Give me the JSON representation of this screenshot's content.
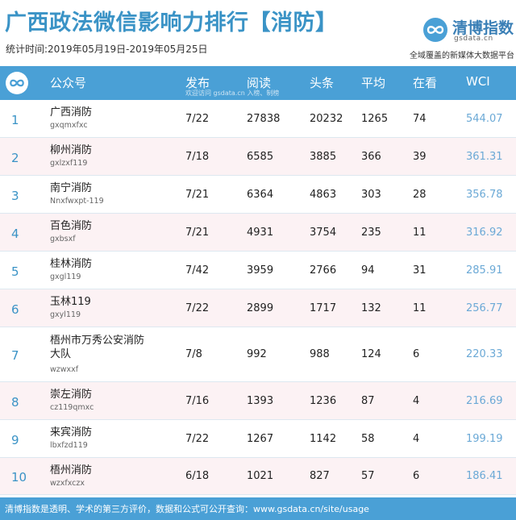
{
  "header": {
    "title": "广西政法微信影响力排行【消防】",
    "period": "统计时间:2019年05月19日-2019年05月25日",
    "logo_text": "清博指数",
    "logo_sub": "gsdata.cn",
    "tagline": "全域覆盖的新媒体大数据平台"
  },
  "table": {
    "columns": [
      "公众号",
      "发布",
      "阅读",
      "头条",
      "平均",
      "在看",
      "WCI"
    ],
    "watermark": "欢迎访问 gsdata.cn 入榜、制榜",
    "rows": [
      {
        "rank": "1",
        "name": "广西消防",
        "account": "gxqmxfxc",
        "publish": "7/22",
        "read": "27838",
        "headline": "20232",
        "avg": "1265",
        "watch": "74",
        "wci": "544.07"
      },
      {
        "rank": "2",
        "name": "柳州消防",
        "account": "gxlzxf119",
        "publish": "7/18",
        "read": "6585",
        "headline": "3885",
        "avg": "366",
        "watch": "39",
        "wci": "361.31"
      },
      {
        "rank": "3",
        "name": "南宁消防",
        "account": "Nnxfwxpt-119",
        "publish": "7/21",
        "read": "6364",
        "headline": "4863",
        "avg": "303",
        "watch": "28",
        "wci": "356.78"
      },
      {
        "rank": "4",
        "name": "百色消防",
        "account": "gxbsxf",
        "publish": "7/21",
        "read": "4931",
        "headline": "3754",
        "avg": "235",
        "watch": "11",
        "wci": "316.92"
      },
      {
        "rank": "5",
        "name": "桂林消防",
        "account": "gxgl119",
        "publish": "7/42",
        "read": "3959",
        "headline": "2766",
        "avg": "94",
        "watch": "31",
        "wci": "285.91"
      },
      {
        "rank": "6",
        "name": "玉林119",
        "account": "gxyl119",
        "publish": "7/22",
        "read": "2899",
        "headline": "1717",
        "avg": "132",
        "watch": "11",
        "wci": "256.77"
      },
      {
        "rank": "7",
        "name": "梧州市万秀公安消防大队",
        "account": "wzwxxf",
        "publish": "7/8",
        "read": "992",
        "headline": "988",
        "avg": "124",
        "watch": "6",
        "wci": "220.33"
      },
      {
        "rank": "8",
        "name": "崇左消防",
        "account": "cz119qmxc",
        "publish": "7/16",
        "read": "1393",
        "headline": "1236",
        "avg": "87",
        "watch": "4",
        "wci": "216.69"
      },
      {
        "rank": "9",
        "name": "来宾消防",
        "account": "lbxfzd119",
        "publish": "7/22",
        "read": "1267",
        "headline": "1142",
        "avg": "58",
        "watch": "4",
        "wci": "199.19"
      },
      {
        "rank": "10",
        "name": "梧州消防",
        "account": "wzxfxczx",
        "publish": "6/18",
        "read": "1021",
        "headline": "827",
        "avg": "57",
        "watch": "6",
        "wci": "186.41"
      }
    ]
  },
  "footer": {
    "text": "清博指数是透明、学术的第三方评价，数据和公式可公开查询：www.gsdata.cn/site/usage"
  },
  "colors": {
    "accent": "#4aa0d6",
    "title": "#3a93c6",
    "alt_row": "#fcf2f4",
    "wci_text": "#6ba9d6"
  },
  "icons": [
    "infinity-logo-icon"
  ]
}
